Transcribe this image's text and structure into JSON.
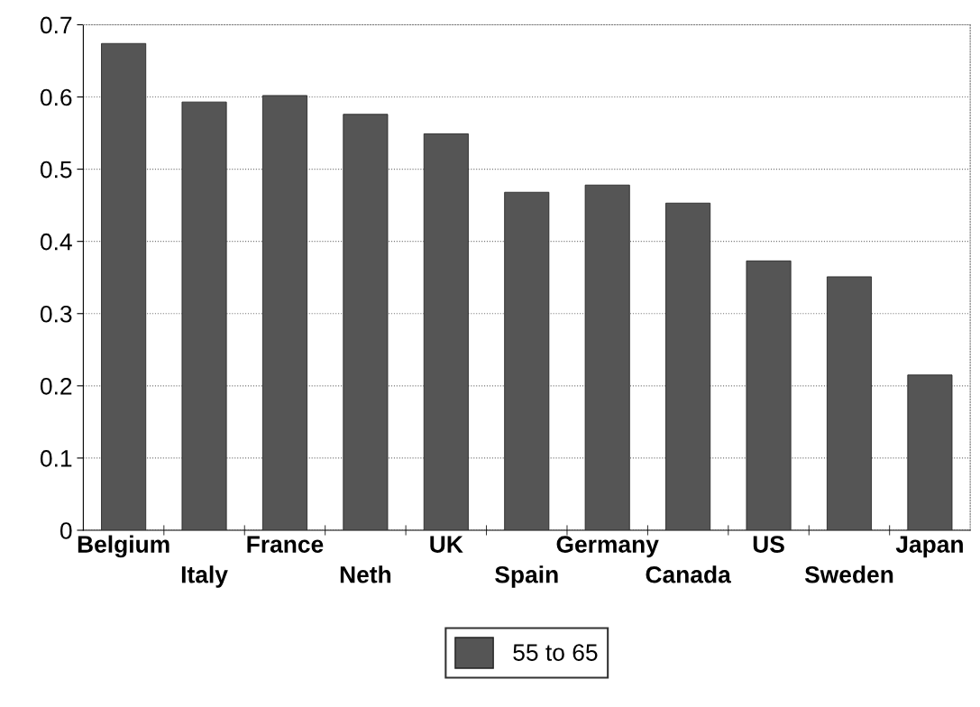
{
  "chart_data": {
    "type": "bar",
    "categories": [
      "Belgium",
      "Italy",
      "France",
      "Neth",
      "UK",
      "Spain",
      "Germany",
      "Canada",
      "US",
      "Sweden",
      "Japan"
    ],
    "series": [
      {
        "name": "55 to 65",
        "color": "#555555",
        "values": [
          0.674,
          0.593,
          0.602,
          0.576,
          0.549,
          0.468,
          0.478,
          0.453,
          0.373,
          0.351,
          0.215
        ]
      }
    ],
    "ylim": [
      0,
      0.7
    ],
    "yticks": [
      0,
      0.1,
      0.2,
      0.3,
      0.4,
      0.5,
      0.6,
      0.7
    ],
    "grid": "y",
    "legend": "bottom"
  }
}
